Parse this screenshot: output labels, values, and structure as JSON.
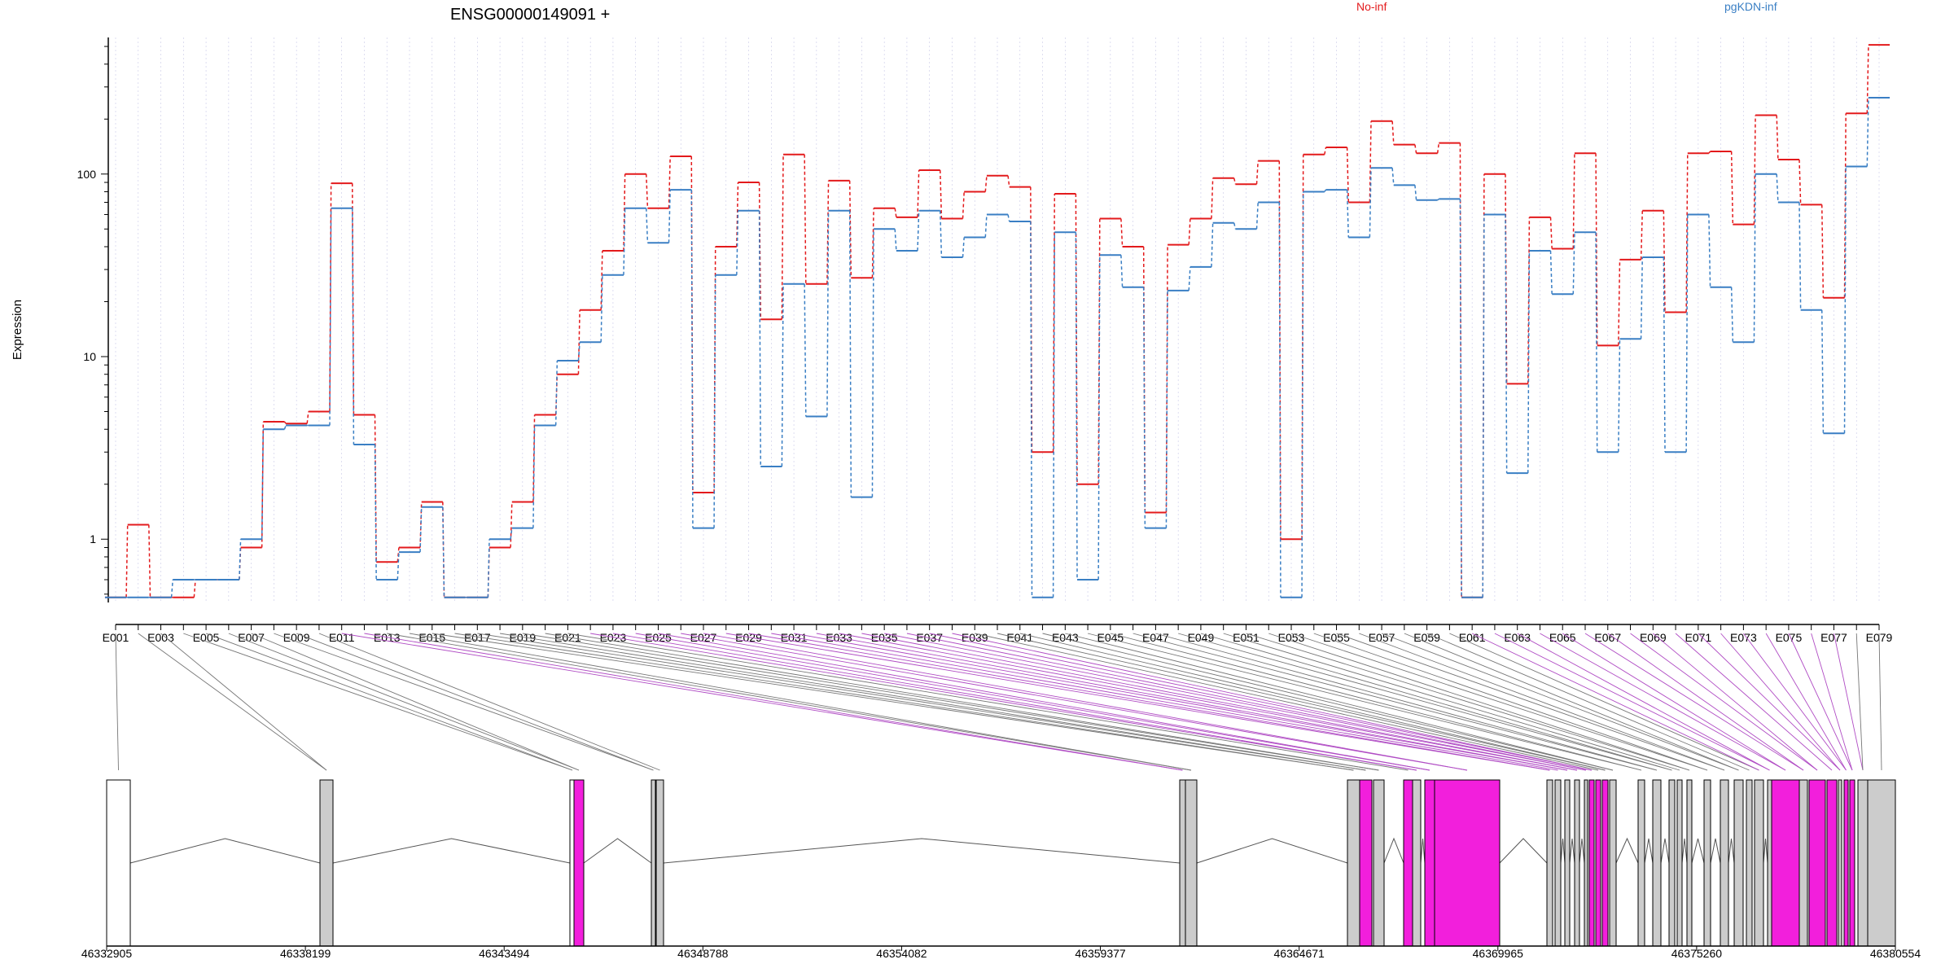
{
  "colors": {
    "no_inf": "#e31a1c",
    "pgkdn_inf": "#3a7fc4",
    "highlight": "#f21fdc",
    "exon": "#cccccc",
    "grid": "#c8c8e6"
  },
  "chart_data": {
    "type": "line",
    "title": "ENSG00000149091 +",
    "ylabel": "Expression",
    "yscale": "log",
    "ylim": [
      0.45,
      560
    ],
    "yticks": [
      1,
      10,
      100
    ],
    "ytick_labels": [
      "1",
      "10",
      "100"
    ],
    "x_labels": [
      "E001",
      "E003",
      "E005",
      "E007",
      "E009",
      "E011",
      "E013",
      "E015",
      "E017",
      "E019",
      "E021",
      "E023",
      "E025",
      "E027",
      "E029",
      "E031",
      "E033",
      "E035",
      "E037",
      "E039",
      "E041",
      "E043",
      "E045",
      "E047",
      "E049",
      "E051",
      "E053",
      "E055",
      "E057",
      "E059",
      "E061",
      "E063",
      "E065",
      "E067",
      "E069",
      "E071",
      "E073",
      "E075",
      "E077",
      "E079"
    ],
    "series": [
      {
        "name": "No-inf",
        "color": "#e31a1c",
        "values": [
          0.48,
          1.2,
          0.48,
          0.48,
          0.6,
          0.6,
          0.9,
          4.4,
          4.3,
          5.0,
          89,
          4.8,
          0.75,
          0.9,
          1.6,
          0.48,
          0.48,
          0.9,
          1.6,
          4.8,
          8.0,
          18,
          38,
          100,
          65,
          125,
          1.8,
          40,
          90,
          16,
          128,
          25,
          92,
          27,
          65,
          58,
          105,
          57,
          80,
          98,
          85,
          3,
          78,
          2,
          57,
          40,
          1.4,
          41,
          57,
          95,
          88,
          118,
          1.0,
          128,
          140,
          70,
          195,
          145,
          130,
          148,
          0.48,
          100,
          7.1,
          58,
          39,
          130,
          11.5,
          34,
          63,
          17.5,
          130,
          133,
          53,
          210,
          120,
          68,
          21,
          215,
          510
        ],
        "dash": "4,3"
      },
      {
        "name": "pgKDN-inf",
        "color": "#3a7fc4",
        "values": [
          0.48,
          0.48,
          0.48,
          0.6,
          0.6,
          0.6,
          1.0,
          4.0,
          4.2,
          4.2,
          65,
          3.3,
          0.6,
          0.85,
          1.5,
          0.48,
          0.48,
          1.0,
          1.15,
          4.2,
          9.5,
          12,
          28,
          65,
          42,
          82,
          1.15,
          28,
          63,
          2.5,
          25,
          4.7,
          63,
          1.7,
          50,
          38,
          63,
          35,
          45,
          60,
          55,
          0.48,
          48,
          0.6,
          36,
          24,
          1.15,
          23,
          31,
          54,
          50,
          70,
          0.48,
          80,
          82,
          45,
          108,
          87,
          72,
          73,
          0.48,
          60,
          2.3,
          38,
          22,
          48,
          3.0,
          12.5,
          35,
          3.0,
          60,
          24,
          12,
          100,
          70,
          18,
          3.8,
          110,
          262
        ],
        "dash": "4,3"
      }
    ],
    "genome_axis": {
      "ticks": [
        "46332905",
        "46338199",
        "46343494",
        "46348788",
        "46354082",
        "46359377",
        "46364671",
        "46369965",
        "46375260",
        "46380554"
      ]
    }
  }
}
